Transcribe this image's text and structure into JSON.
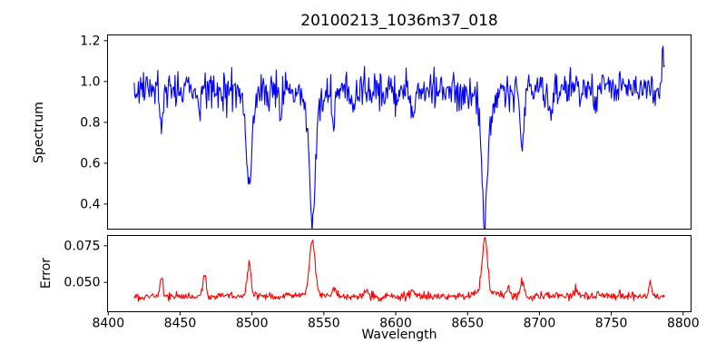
{
  "title": "20100213_1036m37_018",
  "colors": {
    "background": "#ffffff",
    "axes_frame": "#000000",
    "tick_text": "#000000",
    "spectrum_line": "#0000ff",
    "error_line": "#ff0000"
  },
  "chart_data": {
    "type": "line",
    "title": "20100213_1036m37_018",
    "xlabel": "Wavelength",
    "xlim": [
      8399.5,
      8805.5
    ],
    "xticks": [
      8400,
      8450,
      8500,
      8550,
      8600,
      8650,
      8700,
      8750,
      8800
    ],
    "xtick_labels": [
      "8400",
      "8450",
      "8500",
      "8550",
      "8600",
      "8650",
      "8700",
      "8750",
      "8800"
    ],
    "x_data_start": 8418,
    "x_data_end": 8787,
    "n_points": 740,
    "grid": false,
    "legend": "none",
    "panels": [
      {
        "name": "spectrum",
        "ylabel": "Spectrum",
        "ylim": [
          0.277,
          1.228
        ],
        "yticks": [
          0.4,
          0.6,
          0.8,
          1.0,
          1.2
        ],
        "ytick_labels": [
          "0.4",
          "0.6",
          "0.8",
          "1.0",
          "1.2"
        ],
        "line_color": "#0000ff",
        "baseline": 0.965,
        "noise_sigma": 0.042,
        "spike_prob": 0.07,
        "spike_amp": 0.12,
        "spike_sign": -1,
        "seed": 1337,
        "features": [
          {
            "center": 8437,
            "amp": -0.2,
            "sigma": 1.0
          },
          {
            "center": 8463,
            "amp": -0.13,
            "sigma": 0.9
          },
          {
            "center": 8498,
            "amp": -0.44,
            "sigma": 1.8
          },
          {
            "center": 8498,
            "amp": -0.05,
            "sigma": 5.0
          },
          {
            "center": 8520,
            "amp": -0.12,
            "sigma": 1.0
          },
          {
            "center": 8542,
            "amp": -0.57,
            "sigma": 2.0
          },
          {
            "center": 8542,
            "amp": -0.08,
            "sigma": 7.0
          },
          {
            "center": 8557,
            "amp": -0.15,
            "sigma": 1.0
          },
          {
            "center": 8571,
            "amp": -0.11,
            "sigma": 0.9
          },
          {
            "center": 8612,
            "amp": -0.16,
            "sigma": 1.2
          },
          {
            "center": 8662,
            "amp": -0.58,
            "sigma": 2.0
          },
          {
            "center": 8662,
            "amp": -0.08,
            "sigma": 7.0
          },
          {
            "center": 8688,
            "amp": -0.3,
            "sigma": 1.3
          },
          {
            "center": 8708,
            "amp": -0.1,
            "sigma": 1.0
          },
          {
            "center": 8739,
            "amp": -0.11,
            "sigma": 1.0
          },
          {
            "center": 8786,
            "amp": 0.19,
            "sigma": 0.8
          }
        ]
      },
      {
        "name": "error",
        "ylabel": "Error",
        "ylim": [
          0.03,
          0.082
        ],
        "yticks": [
          0.05,
          0.075
        ],
        "ytick_labels": [
          "0.050",
          "0.075"
        ],
        "line_color": "#ff0000",
        "baseline": 0.0405,
        "noise_sigma": 0.0013,
        "spike_prob": 0.05,
        "spike_amp": 0.003,
        "spike_sign": 1,
        "seed": 2024,
        "features": [
          {
            "center": 8437,
            "amp": 0.0135,
            "sigma": 1.0
          },
          {
            "center": 8467,
            "amp": 0.015,
            "sigma": 1.0
          },
          {
            "center": 8498,
            "amp": 0.023,
            "sigma": 1.3
          },
          {
            "center": 8542,
            "amp": 0.0355,
            "sigma": 1.8
          },
          {
            "center": 8542,
            "amp": 0.003,
            "sigma": 6.0
          },
          {
            "center": 8557,
            "amp": 0.005,
            "sigma": 1.2
          },
          {
            "center": 8580,
            "amp": 0.003,
            "sigma": 1.5
          },
          {
            "center": 8612,
            "amp": 0.004,
            "sigma": 1.5
          },
          {
            "center": 8662,
            "amp": 0.037,
            "sigma": 1.8
          },
          {
            "center": 8662,
            "amp": 0.003,
            "sigma": 6.0
          },
          {
            "center": 8678,
            "amp": 0.005,
            "sigma": 1.2
          },
          {
            "center": 8688,
            "amp": 0.0105,
            "sigma": 1.3
          },
          {
            "center": 8725,
            "amp": 0.004,
            "sigma": 1.5
          },
          {
            "center": 8777,
            "amp": 0.0095,
            "sigma": 0.9
          }
        ]
      }
    ]
  }
}
